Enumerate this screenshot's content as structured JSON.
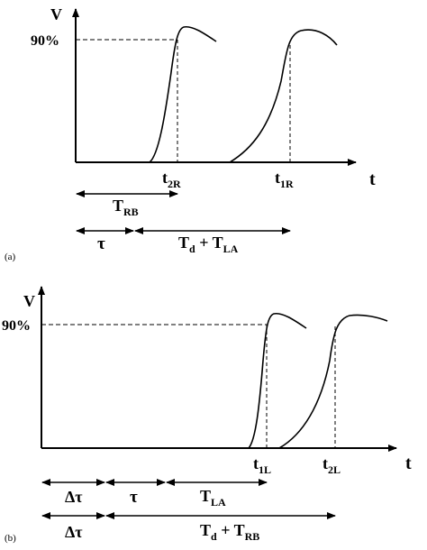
{
  "panel_a": {
    "panel_label": "(a)",
    "y_axis_label": "V",
    "x_axis_label": "t",
    "level_label": "90%",
    "markers": [
      {
        "main": "t",
        "sub": "2R"
      },
      {
        "main": "t",
        "sub": "1R"
      }
    ],
    "intervals": [
      {
        "main": "T",
        "sub": "RB",
        "suffix": ""
      },
      {
        "main": "τ",
        "sub": "",
        "suffix": ""
      },
      {
        "main": "T",
        "sub": "d",
        "suffix": " + T",
        "sub2": "LA"
      }
    ]
  },
  "panel_b": {
    "panel_label": "(b)",
    "y_axis_label": "V",
    "x_axis_label": "t",
    "level_label": "90%",
    "markers": [
      {
        "main": "t",
        "sub": "1L"
      },
      {
        "main": "t",
        "sub": "2L"
      }
    ],
    "intervals": [
      {
        "main": "Δτ",
        "sub": "",
        "suffix": ""
      },
      {
        "main": "τ",
        "sub": "",
        "suffix": ""
      },
      {
        "main": "T",
        "sub": "LA",
        "suffix": ""
      },
      {
        "main": "Δτ",
        "sub": "",
        "suffix": ""
      },
      {
        "main": "T",
        "sub": "d",
        "suffix": " + T",
        "sub2": "RB"
      }
    ]
  }
}
